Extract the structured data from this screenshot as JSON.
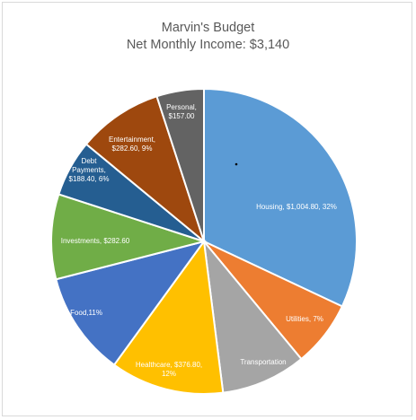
{
  "chart_data": {
    "type": "pie",
    "title": "Marvin's Budget",
    "subtitle": "Net Monthly Income: $3,140",
    "colors": {
      "housing": "#5b9bd5",
      "utilities": "#ed7d31",
      "transportation": "#a5a5a5",
      "healthcare": "#ffc000",
      "food": "#4472c4",
      "investments": "#70ad47",
      "debt_payments": "#255e91",
      "entertainment": "#9e480e",
      "personal": "#636363"
    },
    "slices": [
      {
        "key": "housing",
        "value": 1004.8,
        "label_lines": [
          "Housing, $1,004.80, 32%"
        ]
      },
      {
        "key": "utilities",
        "value": 219.8,
        "label_lines": [
          "Utilities, 7%"
        ]
      },
      {
        "key": "transportation",
        "value": 282.6,
        "label_lines": [
          "Transportation"
        ]
      },
      {
        "key": "healthcare",
        "value": 376.8,
        "label_lines": [
          "Healthcare, $376.80,",
          "12%"
        ]
      },
      {
        "key": "food",
        "value": 345.4,
        "label_lines": [
          "Food,11%"
        ]
      },
      {
        "key": "investments",
        "value": 282.6,
        "label_lines": [
          "Investments, $282.60"
        ]
      },
      {
        "key": "debt_payments",
        "value": 188.4,
        "label_lines": [
          "Debt",
          "Payments,",
          "$188.40, 6%"
        ]
      },
      {
        "key": "entertainment",
        "value": 282.6,
        "label_lines": [
          "Entertainment,",
          "$282.60, 9%"
        ]
      },
      {
        "key": "personal",
        "value": 157.0,
        "label_lines": [
          "Personal,",
          "$157.00"
        ]
      }
    ]
  }
}
